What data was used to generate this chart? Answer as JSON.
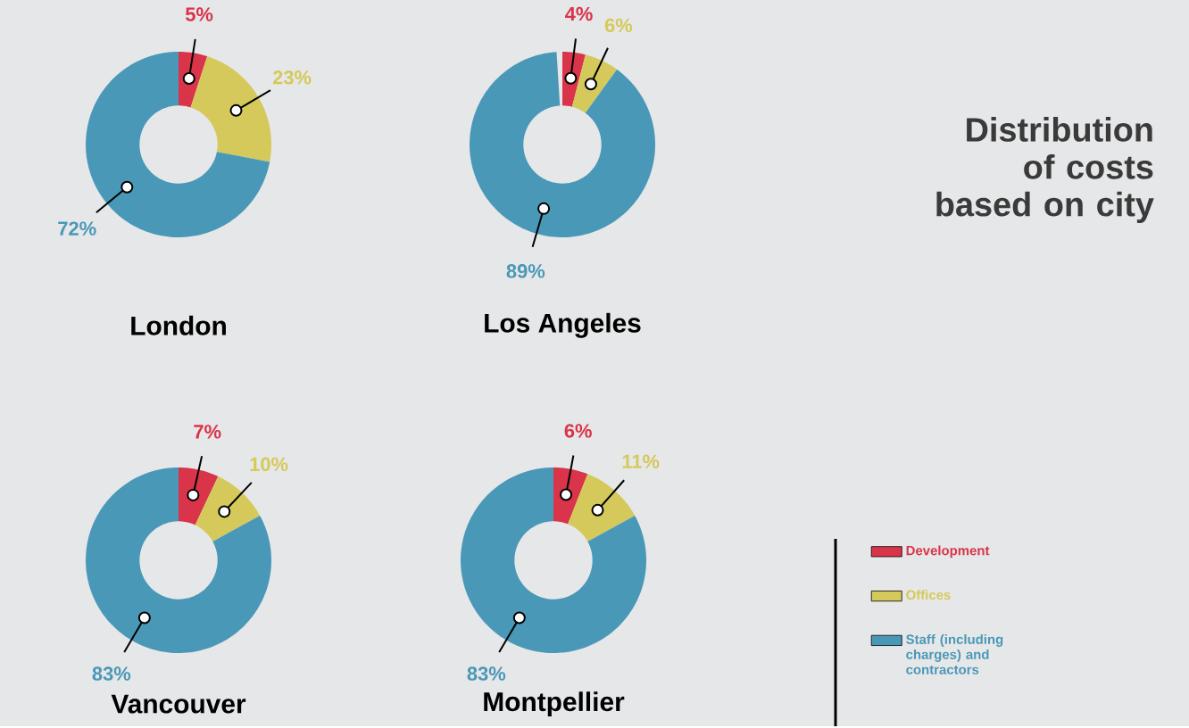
{
  "chart_data": [
    {
      "type": "donut",
      "title": "London",
      "categories": [
        null,
        null,
        null
      ],
      "values": [
        5,
        23,
        72
      ],
      "value_labels": [
        "5%",
        "23%",
        "72%"
      ],
      "colors": [
        "#d9344a",
        "#d4c95a",
        "#4a98b8"
      ]
    },
    {
      "type": "donut",
      "title": "Los Angeles",
      "categories": [
        null,
        null,
        null
      ],
      "values": [
        4,
        6,
        89
      ],
      "value_labels": [
        "4%",
        "6%",
        "89%"
      ],
      "colors": [
        "#d9344a",
        "#d4c95a",
        "#4a98b8"
      ]
    },
    {
      "type": "donut",
      "title": "Vancouver",
      "categories": [
        null,
        null,
        null
      ],
      "values": [
        7,
        10,
        83
      ],
      "value_labels": [
        "7%",
        "10%",
        "83%"
      ],
      "colors": [
        "#d9344a",
        "#d4c95a",
        "#4a98b8"
      ]
    },
    {
      "type": "donut",
      "title": "Montpellier",
      "categories": [
        "Development",
        "Offices",
        "Staff (including charges) and contractors"
      ],
      "values": [
        6,
        11,
        83
      ],
      "value_labels": [
        "6%",
        "11%",
        "83%"
      ],
      "colors": [
        "#d9344a",
        "#d4c95a",
        "#4a98b8"
      ],
      "legend": "right"
    },
    {
      "type": "other",
      "title": "Distribution of costs based on city"
    }
  ]
}
